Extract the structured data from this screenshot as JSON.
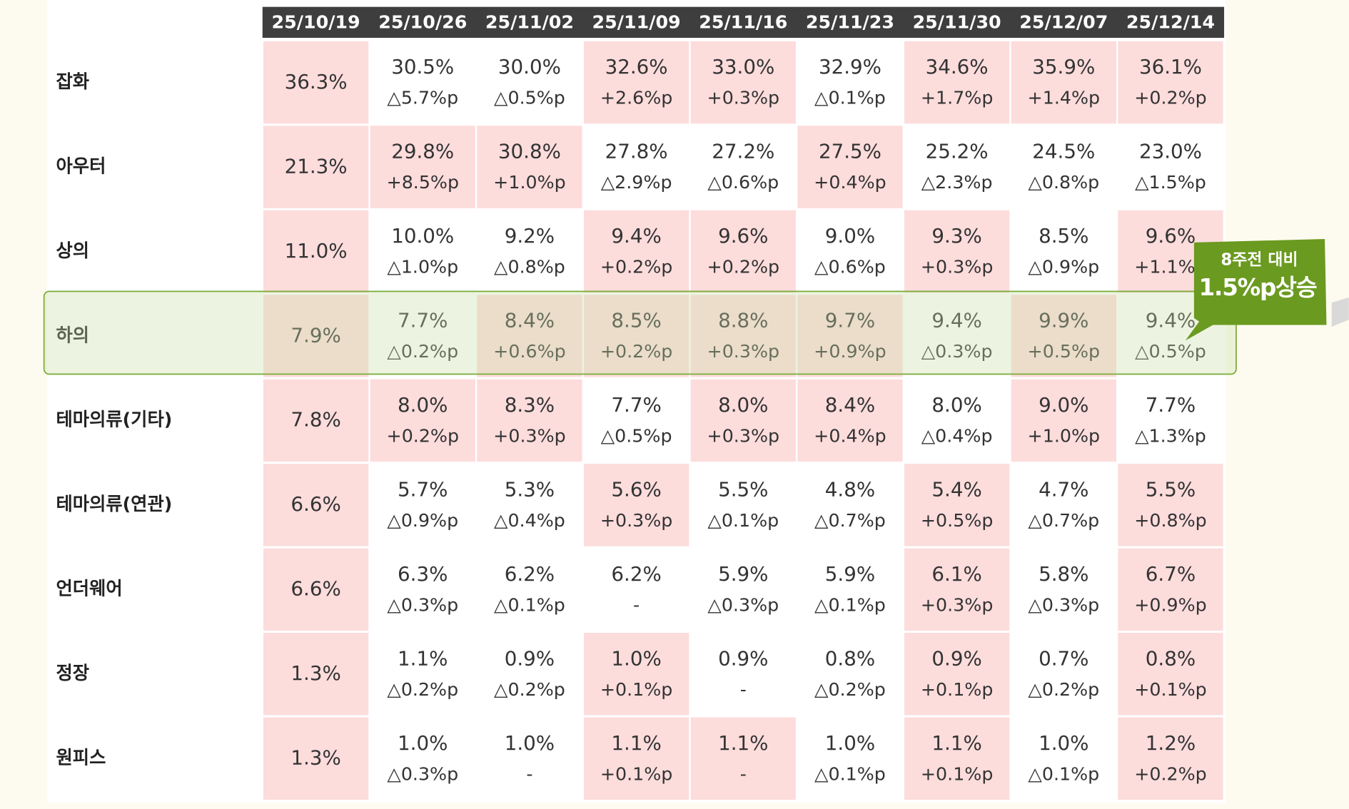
{
  "table": {
    "columns": [
      "25/10/19",
      "25/10/26",
      "25/11/02",
      "25/11/09",
      "25/11/16",
      "25/11/23",
      "25/11/30",
      "25/12/07",
      "25/12/14"
    ],
    "rows": [
      {
        "label": "잡화",
        "highlight": false,
        "cells": [
          {
            "v": "36.3%",
            "hl": true
          },
          {
            "v": "30.5%",
            "c": "△5.7%p",
            "hl": false
          },
          {
            "v": "30.0%",
            "c": "△0.5%p",
            "hl": false
          },
          {
            "v": "32.6%",
            "c": "+2.6%p",
            "hl": true
          },
          {
            "v": "33.0%",
            "c": "+0.3%p",
            "hl": true
          },
          {
            "v": "32.9%",
            "c": "△0.1%p",
            "hl": false
          },
          {
            "v": "34.6%",
            "c": "+1.7%p",
            "hl": true
          },
          {
            "v": "35.9%",
            "c": "+1.4%p",
            "hl": true
          },
          {
            "v": "36.1%",
            "c": "+0.2%p",
            "hl": true
          }
        ]
      },
      {
        "label": "아우터",
        "highlight": false,
        "cells": [
          {
            "v": "21.3%",
            "hl": true
          },
          {
            "v": "29.8%",
            "c": "+8.5%p",
            "hl": true
          },
          {
            "v": "30.8%",
            "c": "+1.0%p",
            "hl": true
          },
          {
            "v": "27.8%",
            "c": "△2.9%p",
            "hl": false
          },
          {
            "v": "27.2%",
            "c": "△0.6%p",
            "hl": false
          },
          {
            "v": "27.5%",
            "c": "+0.4%p",
            "hl": true
          },
          {
            "v": "25.2%",
            "c": "△2.3%p",
            "hl": false
          },
          {
            "v": "24.5%",
            "c": "△0.8%p",
            "hl": false
          },
          {
            "v": "23.0%",
            "c": "△1.5%p",
            "hl": false
          }
        ]
      },
      {
        "label": "상의",
        "highlight": false,
        "cells": [
          {
            "v": "11.0%",
            "hl": true
          },
          {
            "v": "10.0%",
            "c": "△1.0%p",
            "hl": false
          },
          {
            "v": "9.2%",
            "c": "△0.8%p",
            "hl": false
          },
          {
            "v": "9.4%",
            "c": "+0.2%p",
            "hl": true
          },
          {
            "v": "9.6%",
            "c": "+0.2%p",
            "hl": true
          },
          {
            "v": "9.0%",
            "c": "△0.6%p",
            "hl": false
          },
          {
            "v": "9.3%",
            "c": "+0.3%p",
            "hl": true
          },
          {
            "v": "8.5%",
            "c": "△0.9%p",
            "hl": false
          },
          {
            "v": "9.6%",
            "c": "+1.1%p",
            "hl": true
          }
        ]
      },
      {
        "label": "하의",
        "highlight": true,
        "cells": [
          {
            "v": "7.9%",
            "hl": true
          },
          {
            "v": "7.7%",
            "c": "△0.2%p",
            "hl": false
          },
          {
            "v": "8.4%",
            "c": "+0.6%p",
            "hl": true
          },
          {
            "v": "8.5%",
            "c": "+0.2%p",
            "hl": true
          },
          {
            "v": "8.8%",
            "c": "+0.3%p",
            "hl": true
          },
          {
            "v": "9.7%",
            "c": "+0.9%p",
            "hl": true
          },
          {
            "v": "9.4%",
            "c": "△0.3%p",
            "hl": false
          },
          {
            "v": "9.9%",
            "c": "+0.5%p",
            "hl": true
          },
          {
            "v": "9.4%",
            "c": "△0.5%p",
            "hl": false
          }
        ]
      },
      {
        "label": "테마의류(기타)",
        "highlight": false,
        "cells": [
          {
            "v": "7.8%",
            "hl": true
          },
          {
            "v": "8.0%",
            "c": "+0.2%p",
            "hl": true
          },
          {
            "v": "8.3%",
            "c": "+0.3%p",
            "hl": true
          },
          {
            "v": "7.7%",
            "c": "△0.5%p",
            "hl": false
          },
          {
            "v": "8.0%",
            "c": "+0.3%p",
            "hl": true
          },
          {
            "v": "8.4%",
            "c": "+0.4%p",
            "hl": true
          },
          {
            "v": "8.0%",
            "c": "△0.4%p",
            "hl": false
          },
          {
            "v": "9.0%",
            "c": "+1.0%p",
            "hl": true
          },
          {
            "v": "7.7%",
            "c": "△1.3%p",
            "hl": false
          }
        ]
      },
      {
        "label": "테마의류(연관)",
        "highlight": false,
        "cells": [
          {
            "v": "6.6%",
            "hl": true
          },
          {
            "v": "5.7%",
            "c": "△0.9%p",
            "hl": false
          },
          {
            "v": "5.3%",
            "c": "△0.4%p",
            "hl": false
          },
          {
            "v": "5.6%",
            "c": "+0.3%p",
            "hl": true
          },
          {
            "v": "5.5%",
            "c": "△0.1%p",
            "hl": false
          },
          {
            "v": "4.8%",
            "c": "△0.7%p",
            "hl": false
          },
          {
            "v": "5.4%",
            "c": "+0.5%p",
            "hl": true
          },
          {
            "v": "4.7%",
            "c": "△0.7%p",
            "hl": false
          },
          {
            "v": "5.5%",
            "c": "+0.8%p",
            "hl": true
          }
        ]
      },
      {
        "label": "언더웨어",
        "highlight": false,
        "cells": [
          {
            "v": "6.6%",
            "hl": true
          },
          {
            "v": "6.3%",
            "c": "△0.3%p",
            "hl": false
          },
          {
            "v": "6.2%",
            "c": "△0.1%p",
            "hl": false
          },
          {
            "v": "6.2%",
            "c": "-",
            "hl": false
          },
          {
            "v": "5.9%",
            "c": "△0.3%p",
            "hl": false
          },
          {
            "v": "5.9%",
            "c": "△0.1%p",
            "hl": false
          },
          {
            "v": "6.1%",
            "c": "+0.3%p",
            "hl": true
          },
          {
            "v": "5.8%",
            "c": "△0.3%p",
            "hl": false
          },
          {
            "v": "6.7%",
            "c": "+0.9%p",
            "hl": true
          }
        ]
      },
      {
        "label": "정장",
        "highlight": false,
        "cells": [
          {
            "v": "1.3%",
            "hl": true
          },
          {
            "v": "1.1%",
            "c": "△0.2%p",
            "hl": false
          },
          {
            "v": "0.9%",
            "c": "△0.2%p",
            "hl": false
          },
          {
            "v": "1.0%",
            "c": "+0.1%p",
            "hl": true
          },
          {
            "v": "0.9%",
            "c": "-",
            "hl": false
          },
          {
            "v": "0.8%",
            "c": "△0.2%p",
            "hl": false
          },
          {
            "v": "0.9%",
            "c": "+0.1%p",
            "hl": true
          },
          {
            "v": "0.7%",
            "c": "△0.2%p",
            "hl": false
          },
          {
            "v": "0.8%",
            "c": "+0.1%p",
            "hl": true
          }
        ]
      },
      {
        "label": "원피스",
        "highlight": false,
        "cells": [
          {
            "v": "1.3%",
            "hl": true
          },
          {
            "v": "1.0%",
            "c": "△0.3%p",
            "hl": false
          },
          {
            "v": "1.0%",
            "c": "-",
            "hl": false
          },
          {
            "v": "1.1%",
            "c": "+0.1%p",
            "hl": true
          },
          {
            "v": "1.1%",
            "c": "-",
            "hl": true
          },
          {
            "v": "1.0%",
            "c": "△0.1%p",
            "hl": false
          },
          {
            "v": "1.1%",
            "c": "+0.1%p",
            "hl": true
          },
          {
            "v": "1.0%",
            "c": "△0.1%p",
            "hl": false
          },
          {
            "v": "1.2%",
            "c": "+0.2%p",
            "hl": true
          }
        ]
      }
    ]
  },
  "callout": {
    "line1": "8주전 대비",
    "line2": "1.5%p상승"
  }
}
